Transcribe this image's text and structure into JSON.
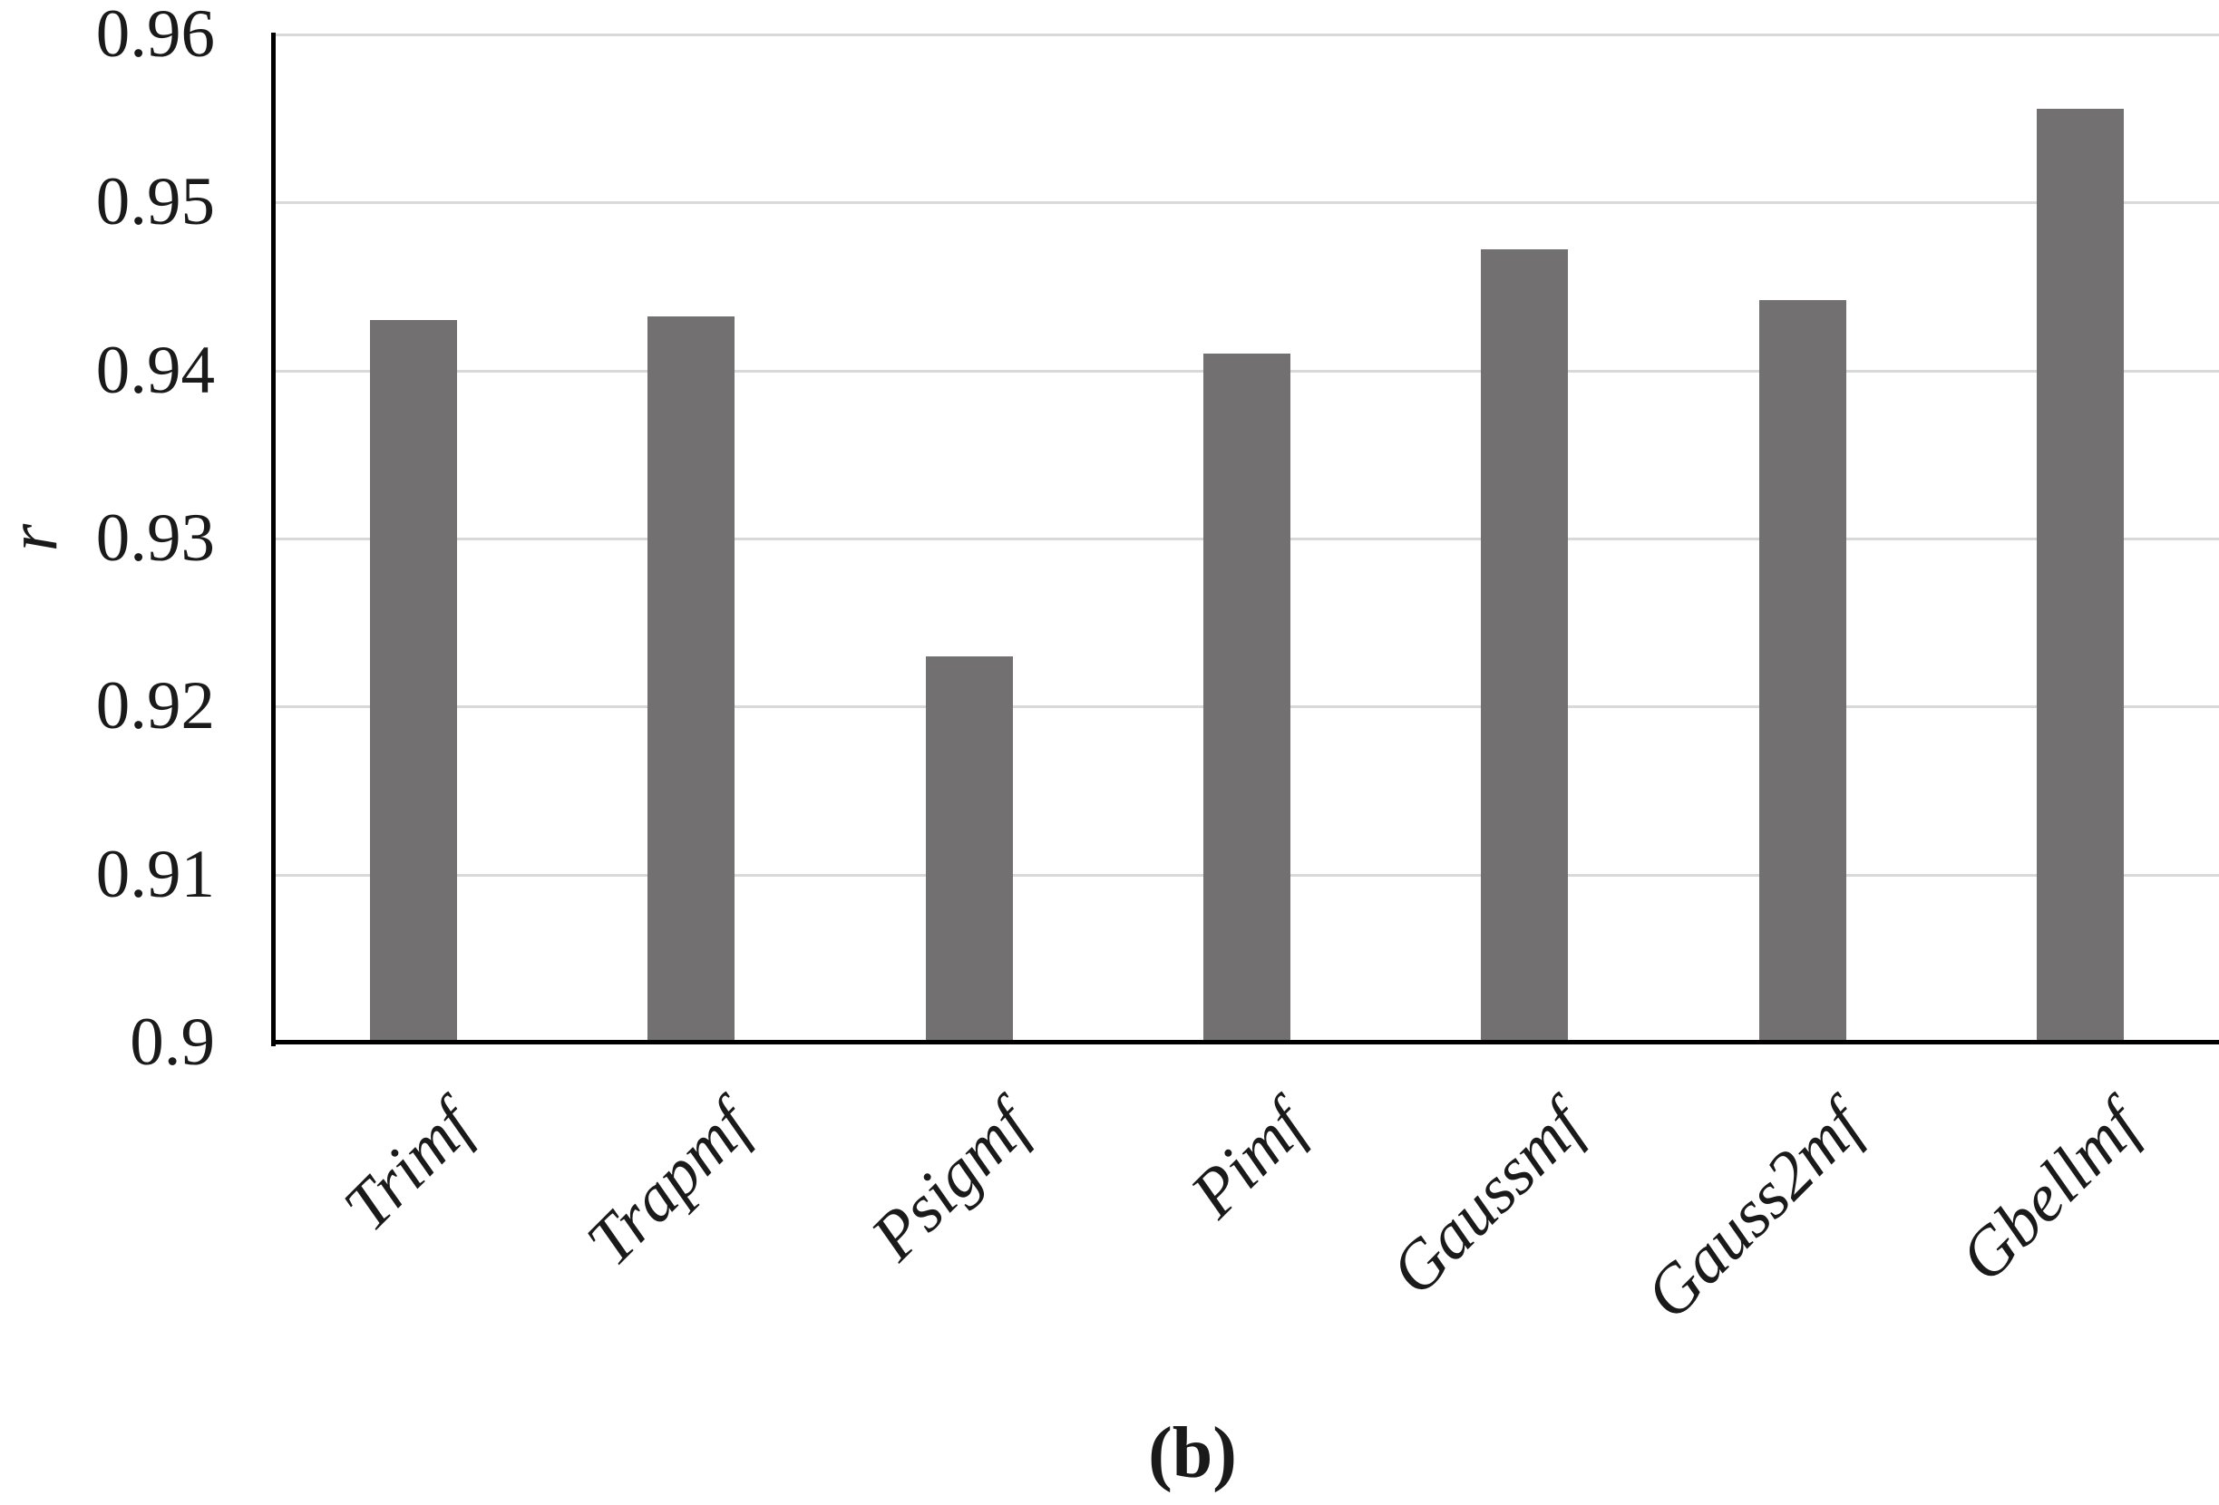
{
  "figure": {
    "caption": "(b)"
  },
  "chart_data": {
    "type": "bar",
    "categories": [
      "Trimf",
      "Trapmf",
      "Psigmf",
      "Pimf",
      "Gaussmf",
      "Gauss2mf",
      "Gbellmf"
    ],
    "values": [
      0.943,
      0.9432,
      0.923,
      0.941,
      0.9472,
      0.9442,
      0.9556
    ],
    "title": "",
    "xlabel": "",
    "ylabel": "r",
    "ylim": [
      0.9,
      0.96
    ],
    "ytick_labels": [
      "0.96",
      "0.95",
      "0.94",
      "0.93",
      "0.92",
      "0.91",
      "0.9"
    ],
    "grid": true,
    "legend": "none",
    "bar_color": "#727070",
    "gridline_color": "#d9d9d9",
    "axis_color": "#000000"
  }
}
